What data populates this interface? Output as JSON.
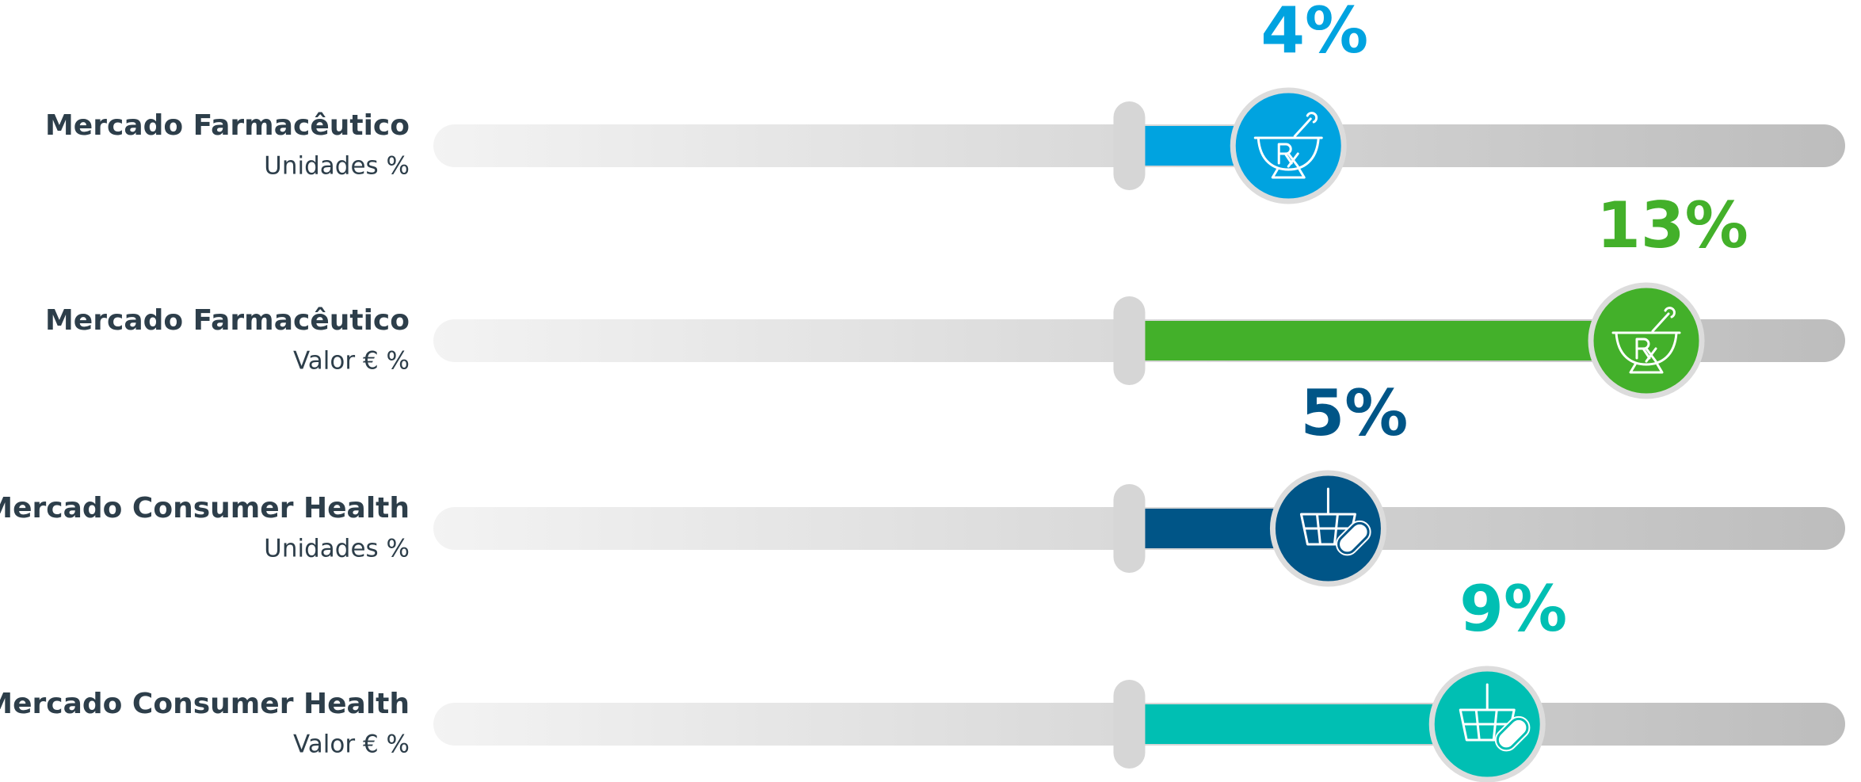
{
  "chart_data": {
    "type": "bar",
    "categories": [
      "Mercado Farmacêutico",
      "Mercado Farmacêutico",
      "Mercado Consumer Health",
      "Mercado Consumer Health"
    ],
    "subtitles": [
      "Unidades %",
      "Valor € %",
      "Unidades %",
      "Valor € %"
    ],
    "values": [
      4,
      13,
      5,
      9
    ],
    "value_labels": [
      "4%",
      "13%",
      "5%",
      "9%"
    ],
    "colors": [
      "#00a3e0",
      "#43b02a",
      "#005587",
      "#00bfb3"
    ],
    "xlim": [
      -17.5,
      18
    ]
  }
}
